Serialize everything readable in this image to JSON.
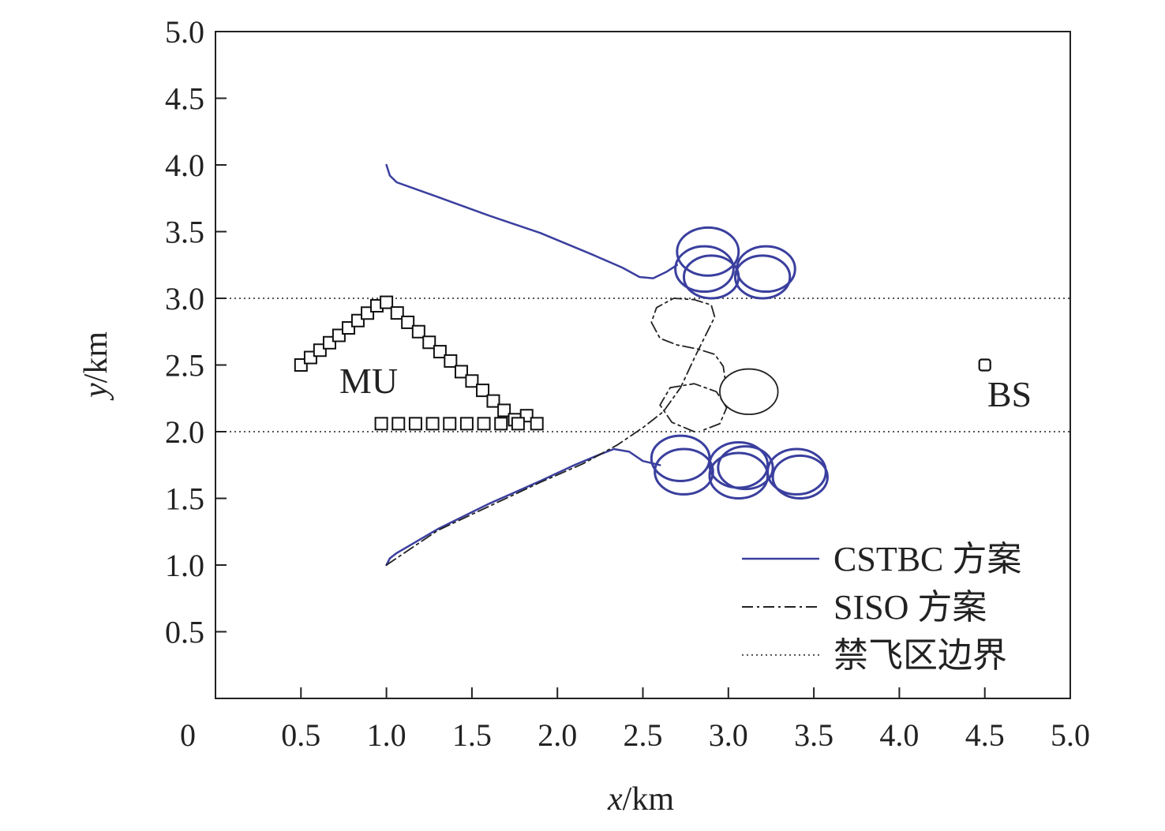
{
  "chart_data": {
    "type": "line",
    "xlabel_var": "x",
    "xlabel_unit": "/km",
    "ylabel_var": "y",
    "ylabel_unit": "/km",
    "xlim": [
      0,
      5
    ],
    "ylim": [
      0,
      5
    ],
    "xticks": [
      "0",
      "0.5",
      "1.0",
      "1.5",
      "2.0",
      "2.5",
      "3.0",
      "3.5",
      "4.0",
      "4.5",
      "5.0"
    ],
    "yticks": [
      "0.5",
      "1.0",
      "1.5",
      "2.0",
      "2.5",
      "3.0",
      "3.5",
      "4.0",
      "4.5",
      "5.0"
    ],
    "grid": false,
    "legend_position": "bottom-right",
    "colors": {
      "cstbc": "#3a3f9e",
      "siso": "#222222",
      "boundary": "#555555",
      "markers": "#111111"
    },
    "legend": [
      {
        "key": "cstbc",
        "label": "CSTBC 方案",
        "style": "solid"
      },
      {
        "key": "siso",
        "label": "SISO 方案",
        "style": "dashdot"
      },
      {
        "key": "boundary",
        "label": "禁飞区边界",
        "style": "dotted"
      }
    ],
    "no_fly_zone_y": [
      2.0,
      3.0
    ],
    "annotations": [
      {
        "text": "MU",
        "x": 0.9,
        "y": 2.38
      },
      {
        "text": "BS",
        "x": 4.5,
        "y": 2.28
      }
    ],
    "base_station": {
      "x": 4.5,
      "y": 2.5
    },
    "mu_positions": [
      [
        0.5,
        2.5
      ],
      [
        0.556,
        2.556
      ],
      [
        0.611,
        2.611
      ],
      [
        0.667,
        2.667
      ],
      [
        0.722,
        2.722
      ],
      [
        0.778,
        2.778
      ],
      [
        0.833,
        2.833
      ],
      [
        0.889,
        2.889
      ],
      [
        0.944,
        2.944
      ],
      [
        1.0,
        2.97
      ],
      [
        1.063,
        2.89
      ],
      [
        1.125,
        2.82
      ],
      [
        1.188,
        2.75
      ],
      [
        1.25,
        2.67
      ],
      [
        1.313,
        2.6
      ],
      [
        1.375,
        2.53
      ],
      [
        1.438,
        2.45
      ],
      [
        1.5,
        2.38
      ],
      [
        1.563,
        2.31
      ],
      [
        1.625,
        2.23
      ],
      [
        1.688,
        2.16
      ],
      [
        1.75,
        2.09
      ],
      [
        1.82,
        2.12
      ],
      [
        0.97,
        2.06
      ],
      [
        1.07,
        2.06
      ],
      [
        1.17,
        2.06
      ],
      [
        1.27,
        2.06
      ],
      [
        1.37,
        2.06
      ],
      [
        1.47,
        2.06
      ],
      [
        1.57,
        2.06
      ],
      [
        1.67,
        2.06
      ],
      [
        1.77,
        2.06
      ],
      [
        1.88,
        2.06
      ]
    ],
    "series": [
      {
        "name": "CSTBC 方案",
        "key": "cstbc",
        "paths": [
          [
            [
              1.0,
              4.0
            ],
            [
              1.02,
              3.92
            ],
            [
              1.06,
              3.87
            ],
            [
              1.3,
              3.76
            ],
            [
              1.6,
              3.62
            ],
            [
              1.9,
              3.49
            ],
            [
              2.2,
              3.33
            ],
            [
              2.38,
              3.23
            ],
            [
              2.48,
              3.16
            ],
            [
              2.56,
              3.15
            ],
            [
              2.64,
              3.2
            ],
            [
              2.7,
              3.25
            ]
          ],
          [
            [
              1.0,
              1.0
            ],
            [
              1.02,
              1.05
            ],
            [
              1.06,
              1.09
            ],
            [
              1.3,
              1.27
            ],
            [
              1.6,
              1.46
            ],
            [
              1.9,
              1.63
            ],
            [
              2.1,
              1.75
            ],
            [
              2.25,
              1.83
            ],
            [
              2.33,
              1.87
            ],
            [
              2.42,
              1.85
            ],
            [
              2.5,
              1.78
            ],
            [
              2.6,
              1.75
            ]
          ]
        ],
        "loops": [
          {
            "cx": 2.88,
            "cy": 3.35,
            "rx": 0.18,
            "ry": 0.18
          },
          {
            "cx": 2.86,
            "cy": 3.22,
            "rx": 0.17,
            "ry": 0.17
          },
          {
            "cx": 2.9,
            "cy": 3.16,
            "rx": 0.16,
            "ry": 0.16
          },
          {
            "cx": 3.22,
            "cy": 3.22,
            "rx": 0.17,
            "ry": 0.17
          },
          {
            "cx": 3.2,
            "cy": 3.16,
            "rx": 0.16,
            "ry": 0.16
          },
          {
            "cx": 2.72,
            "cy": 1.8,
            "rx": 0.17,
            "ry": 0.17
          },
          {
            "cx": 2.74,
            "cy": 1.7,
            "rx": 0.17,
            "ry": 0.17
          },
          {
            "cx": 3.06,
            "cy": 1.75,
            "rx": 0.17,
            "ry": 0.17
          },
          {
            "cx": 3.06,
            "cy": 1.67,
            "rx": 0.17,
            "ry": 0.17
          },
          {
            "cx": 3.1,
            "cy": 1.73,
            "rx": 0.16,
            "ry": 0.16
          },
          {
            "cx": 3.4,
            "cy": 1.7,
            "rx": 0.17,
            "ry": 0.17
          },
          {
            "cx": 3.42,
            "cy": 1.66,
            "rx": 0.16,
            "ry": 0.16
          }
        ]
      },
      {
        "name": "SISO 方案",
        "key": "siso",
        "paths": [
          [
            [
              1.0,
              1.0
            ],
            [
              1.3,
              1.26
            ],
            [
              1.6,
              1.44
            ],
            [
              1.9,
              1.62
            ],
            [
              2.15,
              1.76
            ],
            [
              2.35,
              1.9
            ],
            [
              2.5,
              2.03
            ],
            [
              2.62,
              2.15
            ],
            [
              2.72,
              2.33
            ],
            [
              2.8,
              2.55
            ],
            [
              2.87,
              2.73
            ],
            [
              2.92,
              2.86
            ],
            [
              2.9,
              2.95
            ],
            [
              2.8,
              2.99
            ],
            [
              2.68,
              3.0
            ],
            [
              2.58,
              2.93
            ],
            [
              2.55,
              2.82
            ],
            [
              2.6,
              2.7
            ],
            [
              2.7,
              2.65
            ],
            [
              2.82,
              2.62
            ],
            [
              2.92,
              2.58
            ],
            [
              2.97,
              2.49
            ],
            [
              2.98,
              2.4
            ]
          ],
          [
            [
              2.8,
              2.0
            ],
            [
              2.67,
              2.07
            ],
            [
              2.6,
              2.2
            ],
            [
              2.66,
              2.33
            ],
            [
              2.8,
              2.36
            ],
            [
              2.93,
              2.3
            ],
            [
              2.99,
              2.18
            ],
            [
              2.95,
              2.06
            ],
            [
              2.85,
              2.01
            ]
          ]
        ],
        "loops": [
          {
            "cx": 3.12,
            "cy": 2.3,
            "rx": 0.17,
            "ry": 0.17
          }
        ]
      }
    ]
  }
}
